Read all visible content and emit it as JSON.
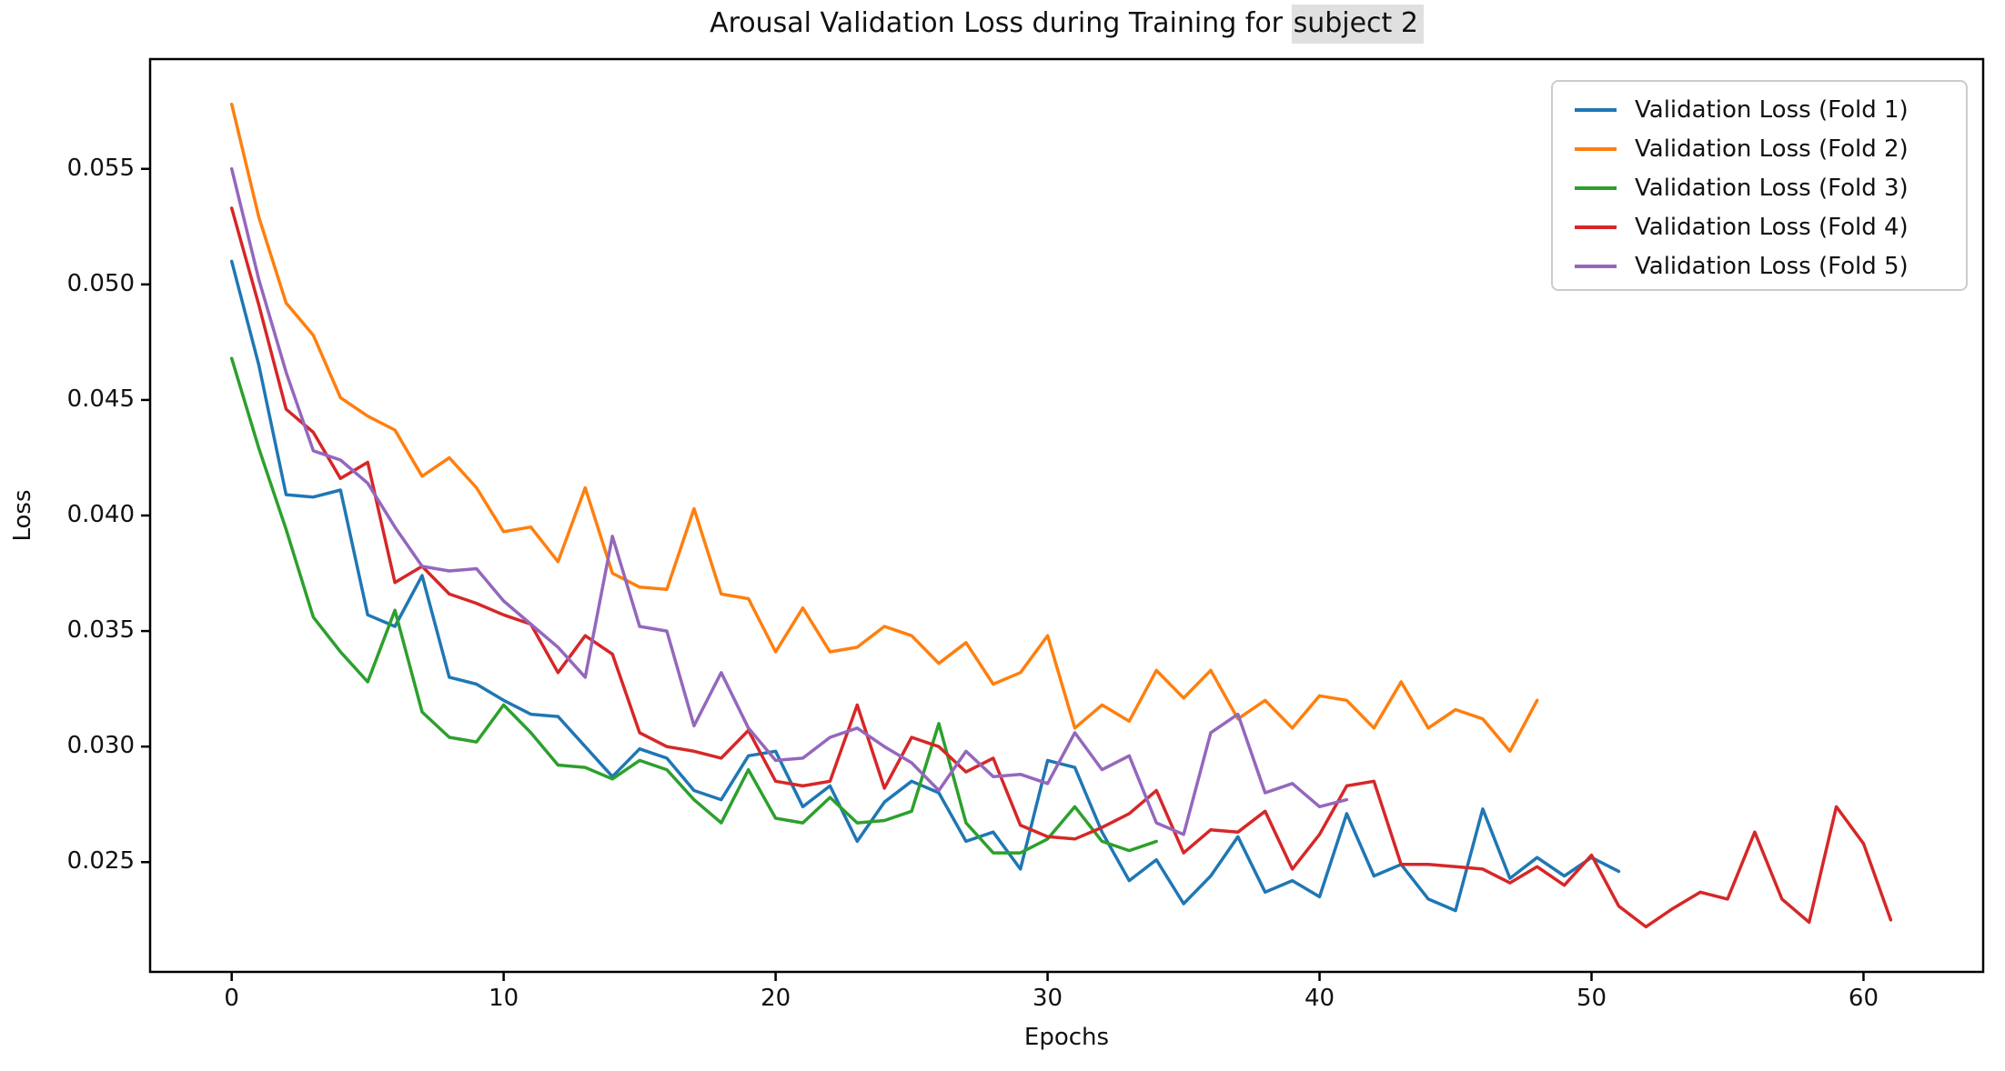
{
  "figure": {
    "title_prefix": "Arousal Validation Loss during Training for ",
    "title_highlight": "subject 2",
    "title_full": "Arousal Validation Loss during Training for subject 2"
  },
  "axes": {
    "xlabel": "Epochs",
    "ylabel": "Loss",
    "x_tick_labels": [
      "0",
      "10",
      "20",
      "30",
      "40",
      "50",
      "60"
    ],
    "x_tick_values": [
      0,
      10,
      20,
      30,
      40,
      50,
      60
    ],
    "y_tick_labels": [
      "0.025",
      "0.030",
      "0.035",
      "0.040",
      "0.045",
      "0.050",
      "0.055"
    ],
    "y_tick_values": [
      0.025,
      0.03,
      0.035,
      0.04,
      0.045,
      0.05,
      0.055
    ]
  },
  "legend": {
    "position": "upper right",
    "items": [
      {
        "label": "Validation Loss (Fold 1)",
        "color": "#1f77b4"
      },
      {
        "label": "Validation Loss (Fold 2)",
        "color": "#ff7f0e"
      },
      {
        "label": "Validation Loss (Fold 3)",
        "color": "#2ca02c"
      },
      {
        "label": "Validation Loss (Fold 4)",
        "color": "#d62728"
      },
      {
        "label": "Validation Loss (Fold 5)",
        "color": "#9467bd"
      }
    ]
  },
  "chart_data": {
    "type": "line",
    "title": "Arousal Validation Loss during Training for subject 2",
    "xlabel": "Epochs",
    "ylabel": "Loss",
    "xlim": [
      -3,
      64.4
    ],
    "ylim": [
      0.02025,
      0.05975
    ],
    "grid": false,
    "legend_position": "upper right",
    "x_start": 0,
    "x_step": 1,
    "series": [
      {
        "name": "Validation Loss (Fold 1)",
        "color": "#1f77b4",
        "values": [
          0.051,
          0.0465,
          0.0409,
          0.0408,
          0.0411,
          0.0357,
          0.0352,
          0.0374,
          0.033,
          0.0327,
          0.032,
          0.0314,
          0.0313,
          0.03,
          0.0287,
          0.0299,
          0.0295,
          0.0281,
          0.0277,
          0.0296,
          0.0298,
          0.0274,
          0.0283,
          0.0259,
          0.0276,
          0.0285,
          0.028,
          0.0259,
          0.0263,
          0.0247,
          0.0294,
          0.0291,
          0.0263,
          0.0242,
          0.0251,
          0.0232,
          0.0244,
          0.0261,
          0.0237,
          0.0242,
          0.0235,
          0.0271,
          0.0244,
          0.0249,
          0.0234,
          0.0229,
          0.0273,
          0.0243,
          0.0252,
          0.0244,
          0.0252,
          0.0246
        ]
      },
      {
        "name": "Validation Loss (Fold 2)",
        "color": "#ff7f0e",
        "values": [
          0.0578,
          0.0529,
          0.0492,
          0.0478,
          0.0451,
          0.0443,
          0.0437,
          0.0417,
          0.0425,
          0.0412,
          0.0393,
          0.0395,
          0.038,
          0.0412,
          0.0375,
          0.0369,
          0.0368,
          0.0403,
          0.0366,
          0.0364,
          0.0341,
          0.036,
          0.0341,
          0.0343,
          0.0352,
          0.0348,
          0.0336,
          0.0345,
          0.0327,
          0.0332,
          0.0348,
          0.0308,
          0.0318,
          0.0311,
          0.0333,
          0.0321,
          0.0333,
          0.0312,
          0.032,
          0.0308,
          0.0322,
          0.032,
          0.0308,
          0.0328,
          0.0308,
          0.0316,
          0.0312,
          0.0298,
          0.032
        ]
      },
      {
        "name": "Validation Loss (Fold 3)",
        "color": "#2ca02c",
        "values": [
          0.0468,
          0.0429,
          0.0394,
          0.0356,
          0.0341,
          0.0328,
          0.0359,
          0.0315,
          0.0304,
          0.0302,
          0.0318,
          0.0306,
          0.0292,
          0.0291,
          0.0286,
          0.0294,
          0.029,
          0.0277,
          0.0267,
          0.029,
          0.0269,
          0.0267,
          0.0278,
          0.0267,
          0.0268,
          0.0272,
          0.031,
          0.0267,
          0.0254,
          0.0254,
          0.026,
          0.0274,
          0.0259,
          0.0255,
          0.0259
        ]
      },
      {
        "name": "Validation Loss (Fold 4)",
        "color": "#d62728",
        "values": [
          0.0533,
          0.0491,
          0.0446,
          0.0436,
          0.0416,
          0.0423,
          0.0371,
          0.0378,
          0.0366,
          0.0362,
          0.0357,
          0.0353,
          0.0332,
          0.0348,
          0.034,
          0.0306,
          0.03,
          0.0298,
          0.0295,
          0.0307,
          0.0285,
          0.0283,
          0.0285,
          0.0318,
          0.0282,
          0.0304,
          0.03,
          0.0289,
          0.0295,
          0.0266,
          0.0261,
          0.026,
          0.0265,
          0.0271,
          0.0281,
          0.0254,
          0.0264,
          0.0263,
          0.0272,
          0.0247,
          0.0262,
          0.0283,
          0.0285,
          0.0249,
          0.0249,
          0.0248,
          0.0247,
          0.0241,
          0.0248,
          0.024,
          0.0253,
          0.0231,
          0.0222,
          0.023,
          0.0237,
          0.0234,
          0.0263,
          0.0234,
          0.0224,
          0.0274,
          0.0258,
          0.0225
        ]
      },
      {
        "name": "Validation Loss (Fold 5)",
        "color": "#9467bd",
        "values": [
          0.055,
          0.0502,
          0.0462,
          0.0428,
          0.0424,
          0.0414,
          0.0395,
          0.0378,
          0.0376,
          0.0377,
          0.0363,
          0.0353,
          0.0343,
          0.033,
          0.0391,
          0.0352,
          0.035,
          0.0309,
          0.0332,
          0.0308,
          0.0294,
          0.0295,
          0.0304,
          0.0308,
          0.03,
          0.0293,
          0.0281,
          0.0298,
          0.0287,
          0.0288,
          0.0284,
          0.0306,
          0.029,
          0.0296,
          0.0267,
          0.0262,
          0.0306,
          0.0314,
          0.028,
          0.0284,
          0.0274,
          0.0277
        ]
      }
    ]
  }
}
